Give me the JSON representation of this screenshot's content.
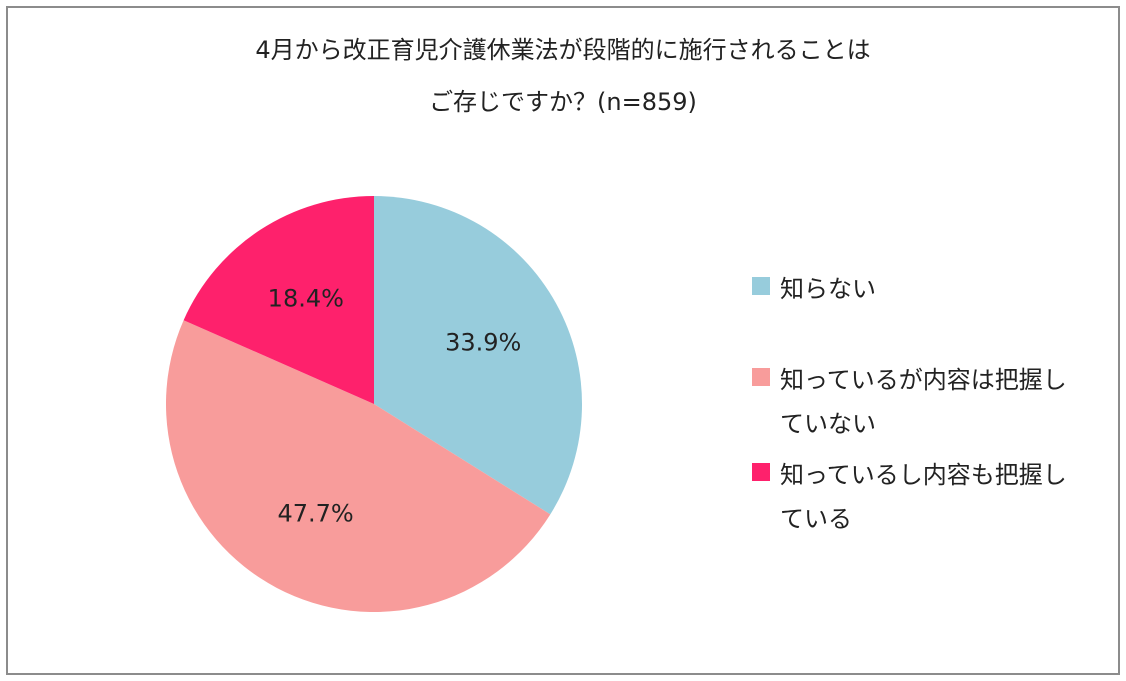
{
  "chart_data": {
    "type": "pie",
    "title_lines": [
      "4月から改正育児介護休業法が段階的に施行されることは",
      "ご存じですか？(n=859)"
    ],
    "slices": [
      {
        "name": "知らない",
        "value": 33.9,
        "label": "33.9%",
        "color": "#97ccdc"
      },
      {
        "name": "知っているが内容は把握していない",
        "value": 47.7,
        "label": "47.7%",
        "color": "#f89c9b"
      },
      {
        "name": "知っているし内容も把握している",
        "value": 18.4,
        "label": "18.4%",
        "color": "#fe216c"
      }
    ],
    "legend_placement": "right",
    "legend": [
      {
        "lines": [
          "知らない"
        ],
        "color": "#97ccdc"
      },
      {
        "lines": [
          "知っているが内容は把握し",
          "ていない"
        ],
        "color": "#f89c9b"
      },
      {
        "lines": [
          "知っているし内容も把握し",
          "ている"
        ],
        "color": "#fe216c"
      }
    ]
  }
}
